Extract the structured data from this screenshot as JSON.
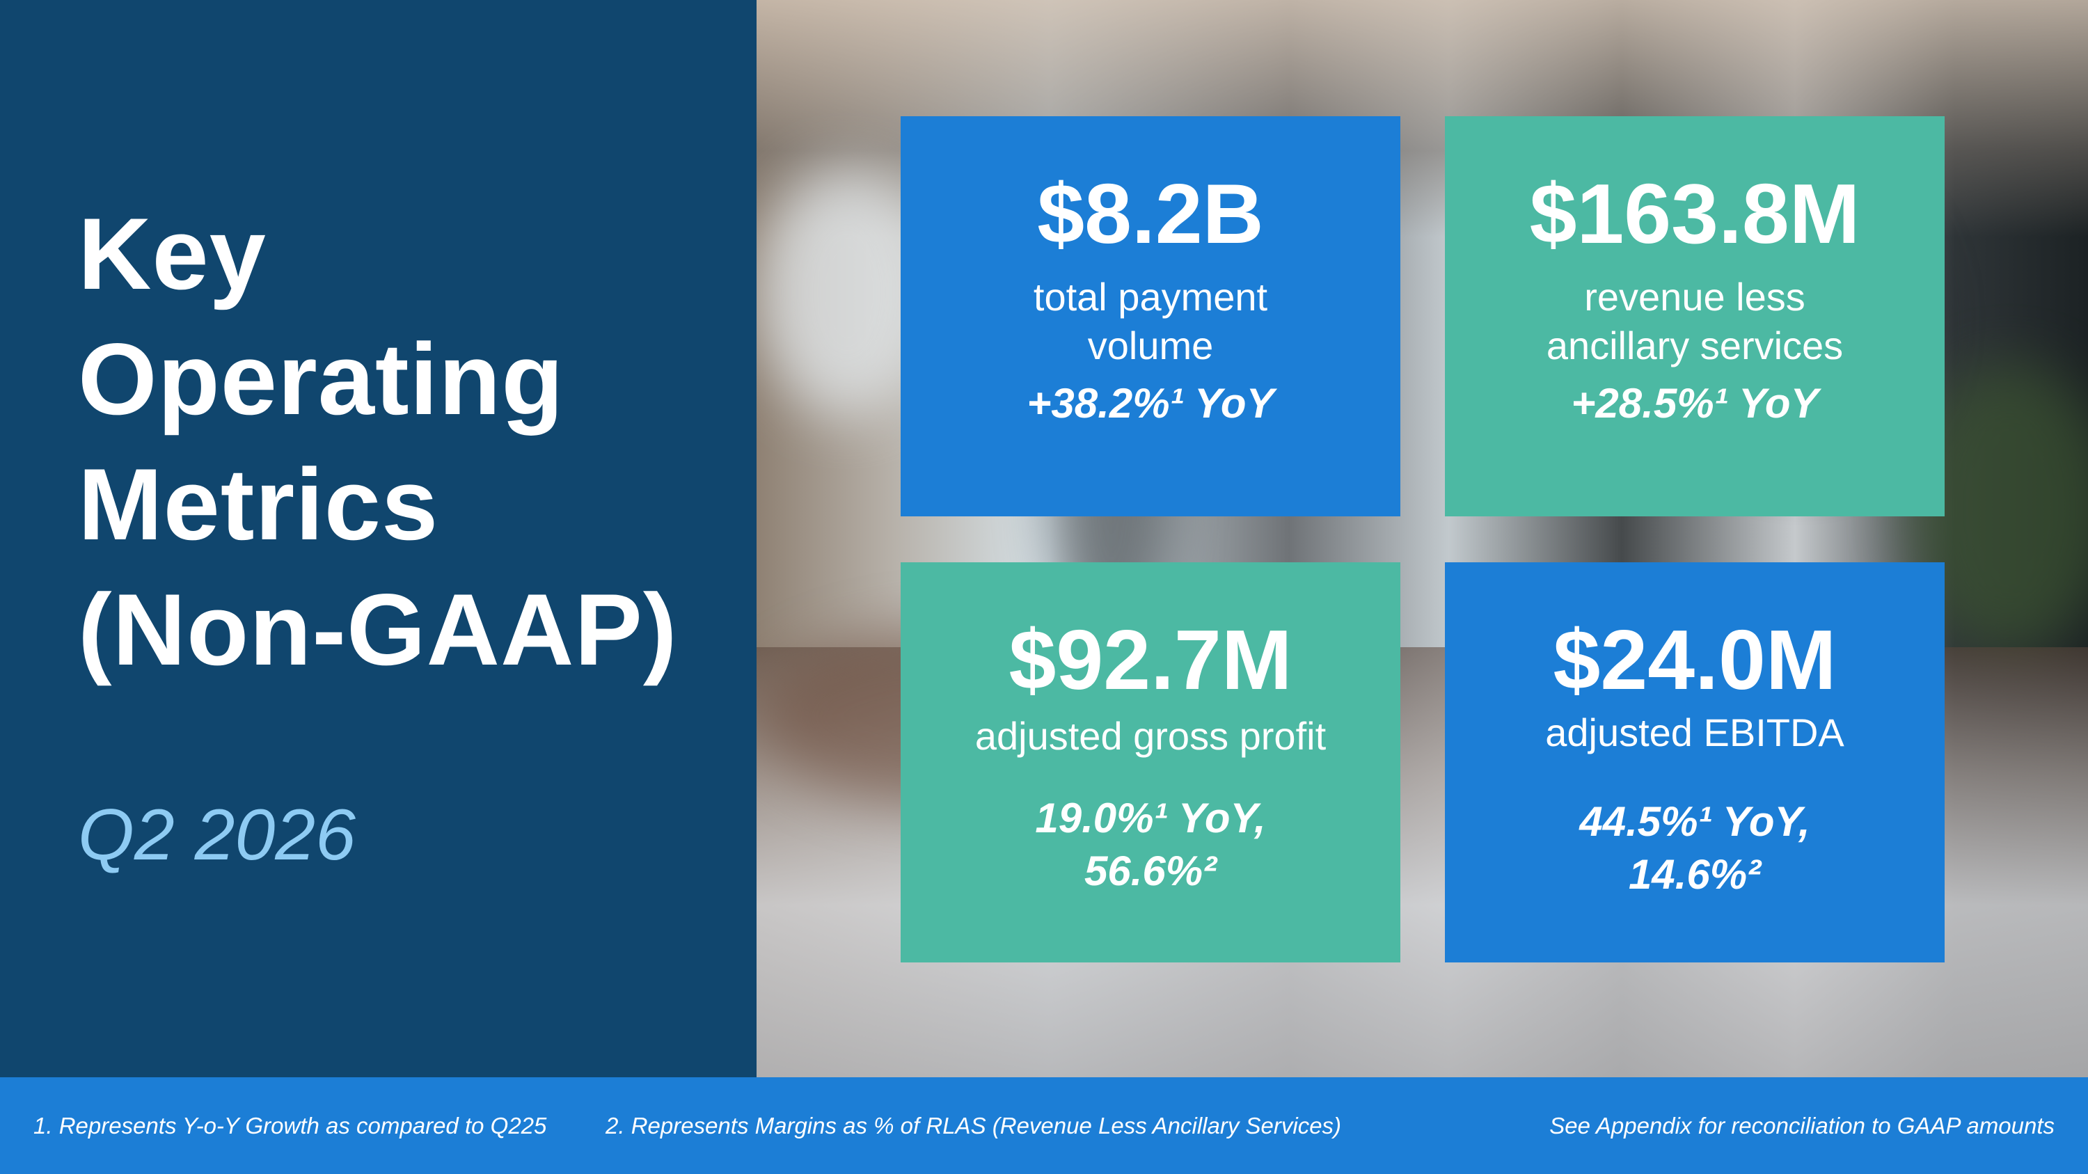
{
  "title_lines": [
    "Key",
    "Operating",
    "Metrics",
    "(Non-GAAP)"
  ],
  "period": "Q2 2026",
  "metrics": [
    {
      "value": "$8.2B",
      "label_lines": [
        "total payment",
        "volume"
      ],
      "growth_lines": [
        "+38.2%¹ YoY"
      ],
      "color": "#1c7ed6"
    },
    {
      "value": "$163.8M",
      "label_lines": [
        "revenue less",
        "ancillary services"
      ],
      "growth_lines": [
        "+28.5%¹ YoY"
      ],
      "color": "#4cb9a3"
    },
    {
      "value": "$92.7M",
      "label_lines": [
        "adjusted gross profit"
      ],
      "growth_lines": [
        "19.0%¹ YoY,",
        "56.6%²"
      ],
      "color": "#4cb9a3"
    },
    {
      "value": "$24.0M",
      "label_lines": [
        "adjusted EBITDA"
      ],
      "growth_lines": [
        "44.5%¹ YoY,",
        "14.6%²"
      ],
      "color": "#1c7ed6"
    }
  ],
  "footnotes": {
    "note1": "1. Represents Y-o-Y Growth as compared to Q225",
    "note2": "2. Represents Margins as % of RLAS (Revenue Less Ancillary Services)",
    "appendix": "See Appendix for reconciliation to GAAP amounts"
  },
  "colors": {
    "left_panel": "#10466e",
    "subtitle": "#8ecbf3",
    "accent_blue": "#1c7ed6",
    "accent_green": "#4cb9a3"
  }
}
